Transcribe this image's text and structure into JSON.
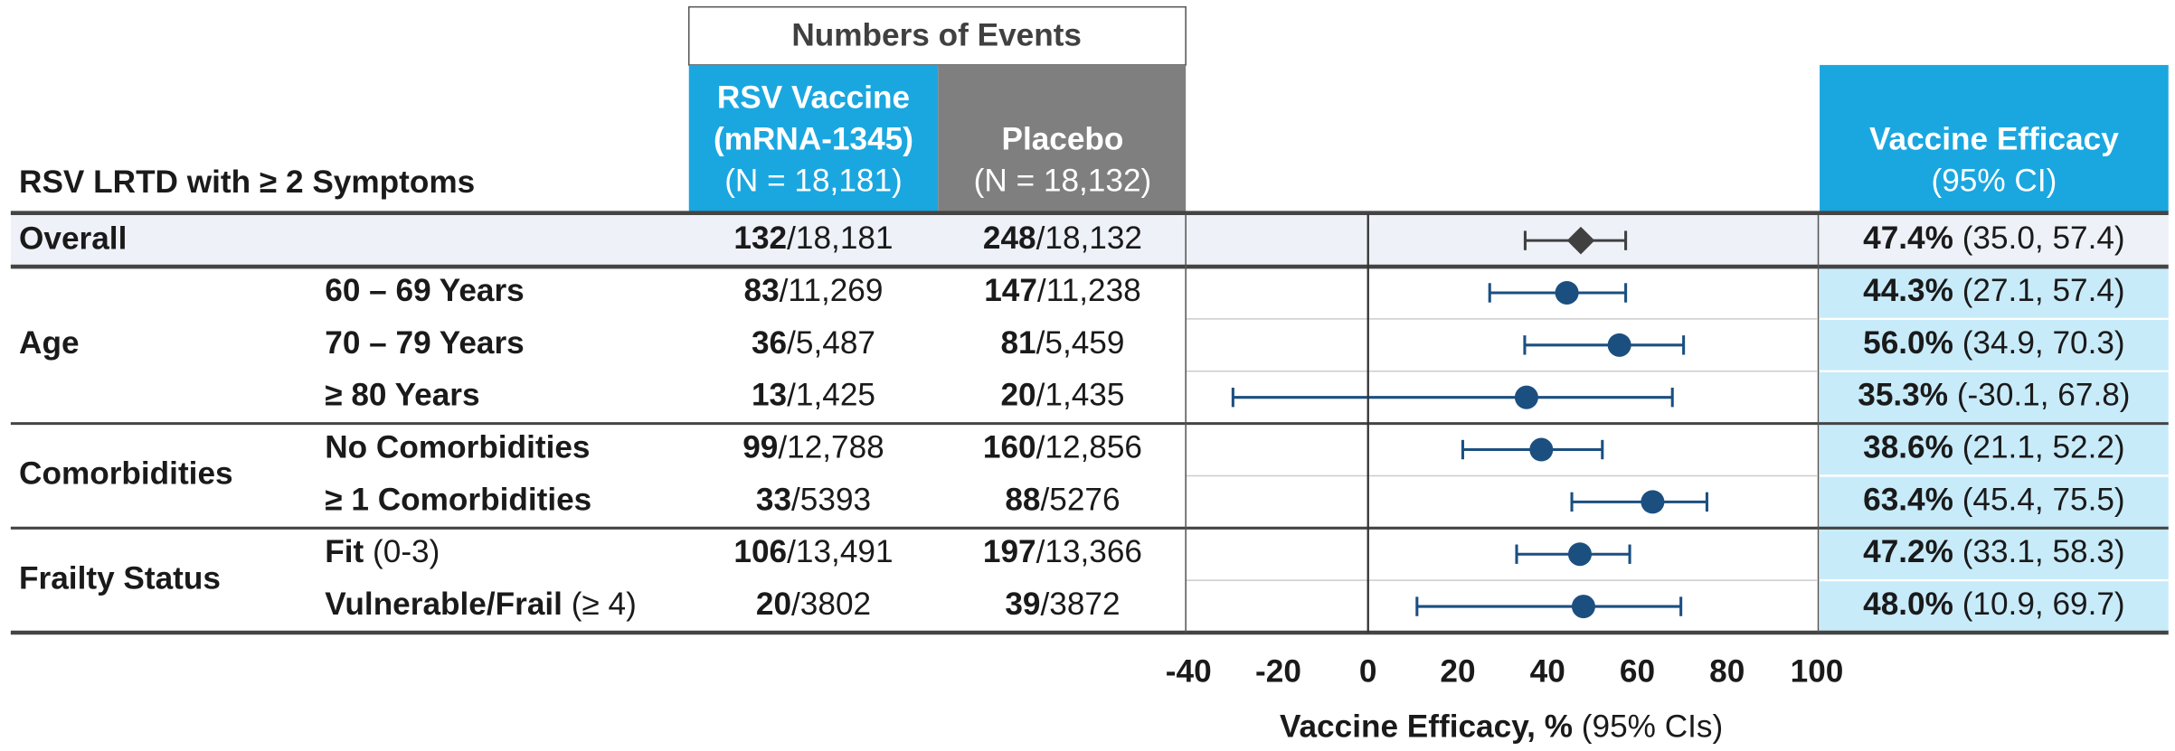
{
  "chart_data": {
    "type": "forest",
    "row_header": "RSV LRTD with ≥ 2 Symptoms",
    "events_header": "Numbers of Events",
    "vaccine_header": [
      "RSV Vaccine",
      "(mRNA-1345)",
      "(N = 18,181)"
    ],
    "placebo_header": [
      "Placebo",
      "(N = 18,132)"
    ],
    "efficacy_header": [
      "Vaccine Efficacy",
      "(95% CI)"
    ],
    "xlabel": "Vaccine Efficacy, %",
    "xlabel_note": "(95% CIs)",
    "xlim": [
      -40,
      100
    ],
    "xticks": [
      -40,
      -20,
      0,
      20,
      40,
      60,
      80,
      100
    ],
    "groups": [
      {
        "label": "Overall",
        "marker": "diamond",
        "color": "#404040",
        "rows": [
          {
            "vaccine_events": 132,
            "vaccine_total": "18,181",
            "placebo_events": 248,
            "placebo_total": "18,132",
            "efficacy": 47.4,
            "efficacy_label": "47.4%",
            "ci_low": 35.0,
            "ci_high": 57.4,
            "ci_label": "(35.0, 57.4)"
          }
        ]
      },
      {
        "label": "Age",
        "marker": "circle",
        "color": "#1b4f80",
        "rows": [
          {
            "subgroup": "60 – 69 Years",
            "vaccine_events": 83,
            "vaccine_total": "11,269",
            "placebo_events": 147,
            "placebo_total": "11,238",
            "efficacy": 44.3,
            "efficacy_label": "44.3%",
            "ci_low": 27.1,
            "ci_high": 57.4,
            "ci_label": "(27.1, 57.4)"
          },
          {
            "subgroup": "70 – 79 Years",
            "vaccine_events": 36,
            "vaccine_total": "5,487",
            "placebo_events": 81,
            "placebo_total": "5,459",
            "efficacy": 56.0,
            "efficacy_label": "56.0%",
            "ci_low": 34.9,
            "ci_high": 70.3,
            "ci_label": "(34.9, 70.3)"
          },
          {
            "subgroup": "≥ 80 Years",
            "vaccine_events": 13,
            "vaccine_total": "1,425",
            "placebo_events": 20,
            "placebo_total": "1,435",
            "efficacy": 35.3,
            "efficacy_label": "35.3%",
            "ci_low": -30.1,
            "ci_high": 67.8,
            "ci_label": "(-30.1, 67.8)"
          }
        ]
      },
      {
        "label": "Comorbidities",
        "marker": "circle",
        "color": "#1b4f80",
        "rows": [
          {
            "subgroup": "No Comorbidities",
            "vaccine_events": 99,
            "vaccine_total": "12,788",
            "placebo_events": 160,
            "placebo_total": "12,856",
            "efficacy": 38.6,
            "efficacy_label": "38.6%",
            "ci_low": 21.1,
            "ci_high": 52.2,
            "ci_label": "(21.1, 52.2)"
          },
          {
            "subgroup": "≥ 1 Comorbidities",
            "vaccine_events": 33,
            "vaccine_total": "5393",
            "placebo_events": 88,
            "placebo_total": "5276",
            "efficacy": 63.4,
            "efficacy_label": "63.4%",
            "ci_low": 45.4,
            "ci_high": 75.5,
            "ci_label": "(45.4, 75.5)"
          }
        ]
      },
      {
        "label": "Frailty Status",
        "marker": "circle",
        "color": "#1b4f80",
        "rows": [
          {
            "subgroup": "Fit",
            "subgroup_note": "(0-3)",
            "vaccine_events": 106,
            "vaccine_total": "13,491",
            "placebo_events": 197,
            "placebo_total": "13,366",
            "efficacy": 47.2,
            "efficacy_label": "47.2%",
            "ci_low": 33.1,
            "ci_high": 58.3,
            "ci_label": "(33.1, 58.3)"
          },
          {
            "subgroup": "Vulnerable/Frail",
            "subgroup_note": "(≥ 4)",
            "vaccine_events": 20,
            "vaccine_total": "3802",
            "placebo_events": 39,
            "placebo_total": "3872",
            "efficacy": 48.0,
            "efficacy_label": "48.0%",
            "ci_low": 10.9,
            "ci_high": 69.7,
            "ci_label": "(10.9, 69.7)"
          }
        ]
      }
    ]
  }
}
